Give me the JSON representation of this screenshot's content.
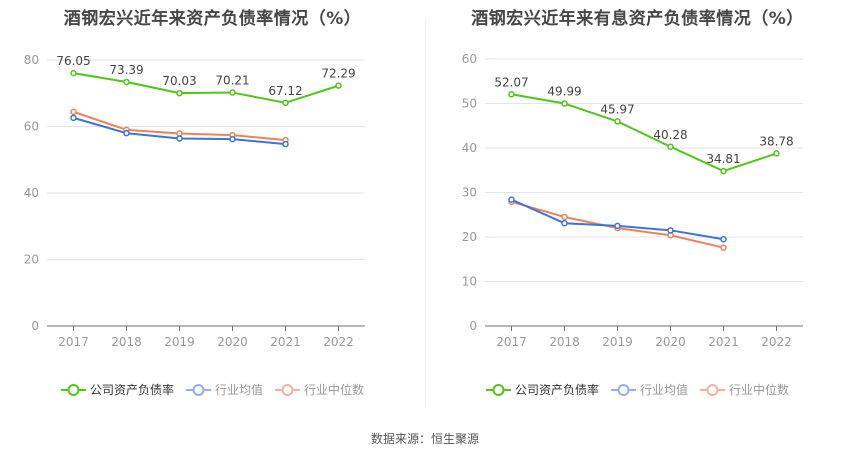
{
  "chart_data": [
    {
      "type": "line",
      "title": "酒钢宏兴近年来资产负债率情况（%）",
      "categories": [
        "2017",
        "2018",
        "2019",
        "2020",
        "2021",
        "2022"
      ],
      "ylim": [
        0,
        80
      ],
      "yticks": [
        0,
        20,
        40,
        60,
        80
      ],
      "grid": true,
      "legend_position": "bottom",
      "series": [
        {
          "name": "公司资产负债率",
          "color": "#52c41a",
          "values": [
            76.05,
            73.39,
            70.03,
            70.21,
            67.12,
            72.29
          ],
          "labels": [
            "76.05",
            "73.39",
            "70.03",
            "70.21",
            "67.12",
            "72.29"
          ]
        },
        {
          "name": "行业均值",
          "color": "#3a75d8",
          "values": [
            62.6,
            58.0,
            56.4,
            56.2,
            54.7,
            null
          ]
        },
        {
          "name": "行业中位数",
          "color": "#f08157",
          "values": [
            64.4,
            59.0,
            57.9,
            57.4,
            55.9,
            null
          ]
        }
      ]
    },
    {
      "type": "line",
      "title": "酒钢宏兴近年来有息资产负债率情况（%）",
      "categories": [
        "2017",
        "2018",
        "2019",
        "2020",
        "2021",
        "2022"
      ],
      "ylim": [
        0,
        60
      ],
      "yticks": [
        0,
        10,
        20,
        30,
        40,
        50,
        60
      ],
      "grid": true,
      "legend_position": "bottom",
      "series": [
        {
          "name": "公司资产负债率",
          "color": "#52c41a",
          "values": [
            52.07,
            49.99,
            45.97,
            40.28,
            34.81,
            38.78
          ],
          "labels": [
            "52.07",
            "49.99",
            "45.97",
            "40.28",
            "34.81",
            "38.78"
          ]
        },
        {
          "name": "行业均值",
          "color": "#3a75d8",
          "values": [
            28.4,
            23.1,
            22.5,
            21.5,
            19.5,
            null
          ]
        },
        {
          "name": "行业中位数",
          "color": "#f08157",
          "values": [
            27.9,
            24.5,
            22.0,
            20.4,
            17.6,
            null
          ]
        }
      ]
    }
  ],
  "legend_colors": {
    "company": "#52c41a",
    "avg": "#8fb0f0",
    "median": "#f5b49a"
  },
  "source": "数据来源：恒生聚源"
}
